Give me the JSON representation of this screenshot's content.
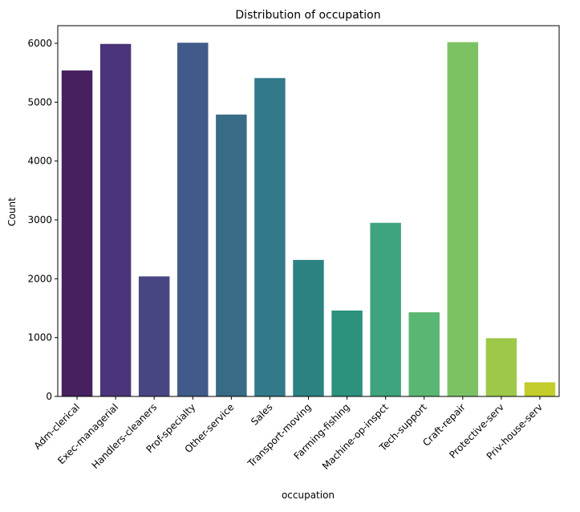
{
  "chart_data": {
    "type": "bar",
    "title": "Distribution of occupation",
    "xlabel": "occupation",
    "ylabel": "Count",
    "ylim": [
      0,
      6300
    ],
    "yticks": [
      0,
      1000,
      2000,
      3000,
      4000,
      5000,
      6000
    ],
    "grid": false,
    "legend": "none",
    "categories": [
      "Adm-clerical",
      "Exec-managerial",
      "Handlers-cleaners",
      "Prof-specialty",
      "Other-service",
      "Sales",
      "Transport-moving",
      "Farming-fishing",
      "Machine-op-inspct",
      "Tech-support",
      "Craft-repair",
      "Protective-serv",
      "Priv-house-serv"
    ],
    "values": [
      5540,
      5990,
      2040,
      6010,
      4790,
      5410,
      2320,
      1460,
      2950,
      1430,
      6020,
      990,
      240
    ],
    "colors": [
      "#46205f",
      "#4b3479",
      "#484682",
      "#405b89",
      "#386b86",
      "#32798a",
      "#2b8281",
      "#2c917d",
      "#3ea47d",
      "#5ab673",
      "#7cc265",
      "#9ec848",
      "#c3cd2c"
    ]
  }
}
